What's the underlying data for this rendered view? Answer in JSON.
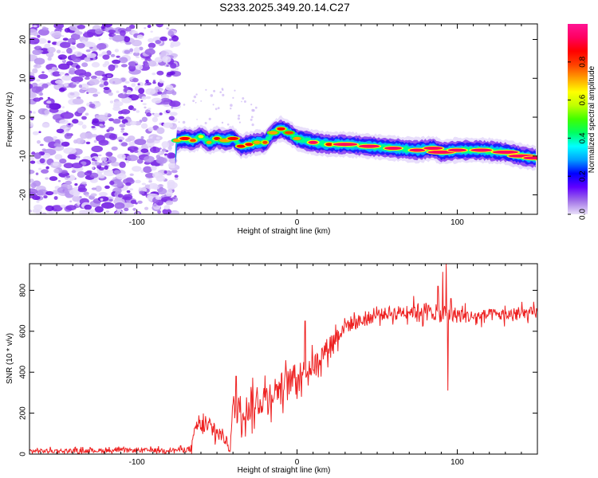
{
  "title": "S233.2025.349.20.14.C27",
  "chart_data": [
    {
      "type": "heatmap",
      "xlabel": "Height of straight line (km)",
      "ylabel": "Frequency (Hz)",
      "xlim": [
        -167,
        150
      ],
      "ylim": [
        -25,
        24
      ],
      "xticks": [
        -100,
        0,
        100
      ],
      "yticks": [
        -20,
        -10,
        0,
        10,
        20
      ],
      "colorbar": {
        "label": "Normalized spectral amplitude",
        "range": [
          0,
          1
        ],
        "ticks": [
          0.0,
          0.2,
          0.4,
          0.6,
          0.8
        ],
        "colors": [
          "#e8e0f8",
          "#a070e8",
          "#6000ff",
          "#0000ff",
          "#00a0ff",
          "#00ffff",
          "#00ff60",
          "#40ff00",
          "#c0ff00",
          "#ffff00",
          "#ffa000",
          "#ff4000",
          "#ff0000",
          "#ff0060",
          "#ff1493"
        ]
      },
      "noise_region": {
        "x": [
          -167,
          -75
        ],
        "y": [
          -25,
          24
        ],
        "level": 0.15
      },
      "ridge": [
        {
          "x": -75,
          "y": -6
        },
        {
          "x": -70,
          "y": -5.5
        },
        {
          "x": -65,
          "y": -6
        },
        {
          "x": -60,
          "y": -5
        },
        {
          "x": -55,
          "y": -6.5
        },
        {
          "x": -50,
          "y": -5.5
        },
        {
          "x": -45,
          "y": -6
        },
        {
          "x": -40,
          "y": -5.5
        },
        {
          "x": -35,
          "y": -7.5
        },
        {
          "x": -30,
          "y": -7
        },
        {
          "x": -25,
          "y": -6.5
        },
        {
          "x": -20,
          "y": -6.5
        },
        {
          "x": -15,
          "y": -4
        },
        {
          "x": -10,
          "y": -3
        },
        {
          "x": -5,
          "y": -4
        },
        {
          "x": 0,
          "y": -5.5
        },
        {
          "x": 10,
          "y": -6.5
        },
        {
          "x": 20,
          "y": -7
        },
        {
          "x": 30,
          "y": -7
        },
        {
          "x": 45,
          "y": -7.5
        },
        {
          "x": 60,
          "y": -8
        },
        {
          "x": 75,
          "y": -8.5
        },
        {
          "x": 85,
          "y": -8
        },
        {
          "x": 90,
          "y": -9
        },
        {
          "x": 100,
          "y": -8.5
        },
        {
          "x": 115,
          "y": -8.5
        },
        {
          "x": 130,
          "y": -9
        },
        {
          "x": 140,
          "y": -10
        },
        {
          "x": 148,
          "y": -10.5
        }
      ]
    },
    {
      "type": "line",
      "xlabel": "Height of straight line (km)",
      "ylabel": "SNR (10 * v/v)",
      "xlim": [
        -167,
        150
      ],
      "ylim": [
        0,
        930
      ],
      "xticks": [
        -100,
        0,
        100
      ],
      "yticks": [
        0,
        200,
        400,
        600,
        800
      ],
      "color": "#ee2222",
      "envelope": [
        {
          "x": -167,
          "y": 15,
          "noise": 20
        },
        {
          "x": -75,
          "y": 20,
          "noise": 20
        },
        {
          "x": -66,
          "y": 25,
          "noise": 30
        },
        {
          "x": -63,
          "y": 140,
          "noise": 80
        },
        {
          "x": -55,
          "y": 130,
          "noise": 90
        },
        {
          "x": -45,
          "y": 80,
          "noise": 70
        },
        {
          "x": -42,
          "y": 20,
          "noise": 20
        },
        {
          "x": -40,
          "y": 220,
          "noise": 150
        },
        {
          "x": -30,
          "y": 220,
          "noise": 140
        },
        {
          "x": -20,
          "y": 280,
          "noise": 150
        },
        {
          "x": -10,
          "y": 330,
          "noise": 140
        },
        {
          "x": 0,
          "y": 380,
          "noise": 130
        },
        {
          "x": 10,
          "y": 430,
          "noise": 110
        },
        {
          "x": 20,
          "y": 530,
          "noise": 100
        },
        {
          "x": 30,
          "y": 630,
          "noise": 80
        },
        {
          "x": 40,
          "y": 650,
          "noise": 70
        },
        {
          "x": 50,
          "y": 680,
          "noise": 60
        },
        {
          "x": 60,
          "y": 690,
          "noise": 60
        },
        {
          "x": 70,
          "y": 700,
          "noise": 70
        },
        {
          "x": 80,
          "y": 700,
          "noise": 90
        },
        {
          "x": 85,
          "y": 690,
          "noise": 70
        },
        {
          "x": 90,
          "y": 680,
          "noise": 80
        },
        {
          "x": 100,
          "y": 680,
          "noise": 80
        },
        {
          "x": 110,
          "y": 670,
          "noise": 60
        },
        {
          "x": 120,
          "y": 680,
          "noise": 60
        },
        {
          "x": 130,
          "y": 680,
          "noise": 60
        },
        {
          "x": 140,
          "y": 685,
          "noise": 60
        },
        {
          "x": 150,
          "y": 690,
          "noise": 60
        }
      ],
      "spikes": [
        {
          "x": 91,
          "y": 890
        },
        {
          "x": 93,
          "y": 930
        },
        {
          "x": 94,
          "y": 310
        },
        {
          "x": 88,
          "y": 820
        },
        {
          "x": 96,
          "y": 760
        },
        {
          "x": 5,
          "y": 650
        },
        {
          "x": -38,
          "y": 380
        }
      ]
    }
  ]
}
